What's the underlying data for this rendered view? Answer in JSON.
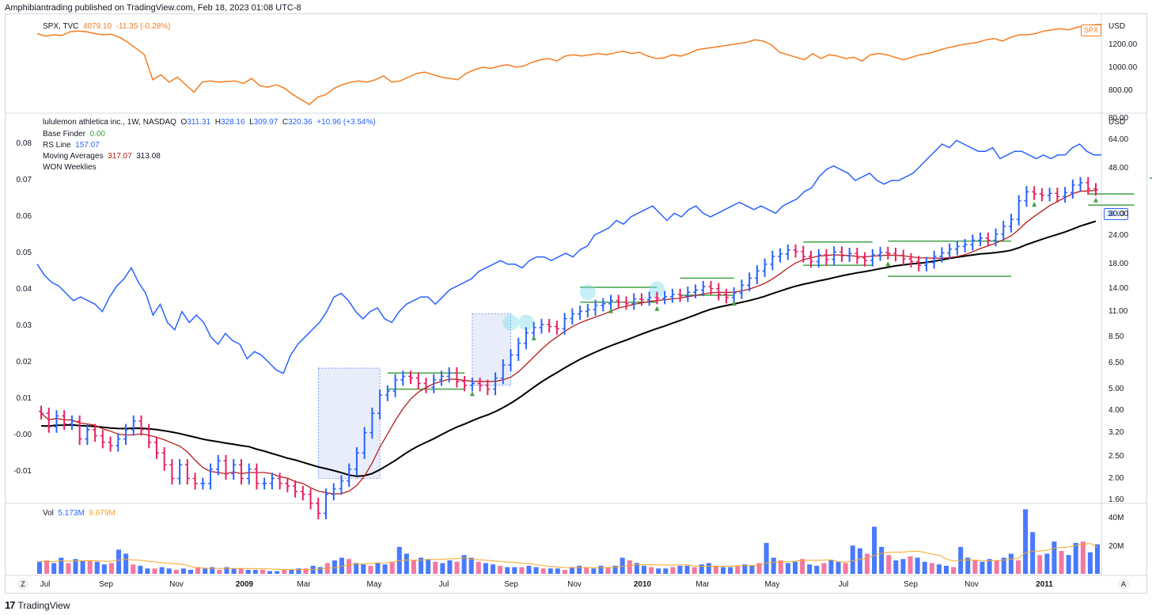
{
  "header": {
    "text": "Amphibiantrading published on TradingView.com, Feb 18, 2023 01:08 UTC-8"
  },
  "footer": {
    "logo": "17",
    "brand": "TradingView"
  },
  "spx_pane": {
    "legend": {
      "symbol": "SPX, TVC",
      "last": "4079.10",
      "change": "-11.35 (-0.28%)"
    },
    "currency": "USD",
    "price_tag": "SPX",
    "y_ticks": [
      "1200.00",
      "1000.00",
      "800.00"
    ],
    "color": "#f57c1f"
  },
  "main_pane": {
    "legend": {
      "title": "lululemon athletica inc., 1W, NASDAQ",
      "o_label": "O",
      "o": "311.31",
      "h_label": "H",
      "h": "328.16",
      "l_label": "L",
      "l": "309.97",
      "c_label": "C",
      "c": "320.36",
      "chg": "+10.96 (+3.54%)",
      "base_finder_label": "Base Finder",
      "base_finder": "0.00",
      "rs_label": "RS Line",
      "rs": "157.07",
      "ma_label": "Moving Averages",
      "ma1": "317.07",
      "ma2": "313.08",
      "won_label": "WON Weeklies"
    },
    "currency": "USD",
    "price_tag": "38.63",
    "right_ticks": [
      "80.00",
      "64.00",
      "48.00",
      "30.00",
      "24.00",
      "18.00",
      "14.00",
      "11.00",
      "8.50",
      "6.50",
      "5.00",
      "4.00",
      "3.20",
      "2.50",
      "2.00",
      "1.60"
    ],
    "left_ticks": [
      "0.08",
      "0.07",
      "0.06",
      "0.05",
      "0.04",
      "0.03",
      "0.02",
      "0.01",
      "-0.00",
      "-0.01"
    ],
    "colors": {
      "up": "#2962ff",
      "down": "#e91e63",
      "rs": "#2962ff",
      "ma_short": "#b71c1c",
      "ma_long": "#000000",
      "base": "#43a047",
      "box": "#dfe6f7"
    }
  },
  "volume_pane": {
    "legend": {
      "label": "Vol",
      "value": "5.173M",
      "ma": "8.679M"
    },
    "y_ticks": [
      "40M",
      "20M"
    ]
  },
  "x_axis": {
    "labels": [
      "Jul",
      "Sep",
      "Nov",
      "2009",
      "Mar",
      "May",
      "Jul",
      "Sep",
      "Nov",
      "2010",
      "Mar",
      "May",
      "Jul",
      "Sep",
      "Nov",
      "2011"
    ],
    "z_button": "Z",
    "a_button": "A"
  },
  "chart_data": [
    {
      "type": "line",
      "name": "SPX",
      "x_range": [
        "2008-07",
        "2011-02"
      ],
      "values": [
        1270,
        1250,
        1260,
        1255,
        1285,
        1290,
        1285,
        1270,
        1260,
        1265,
        1240,
        1200,
        1150,
        1100,
        900,
        940,
        880,
        920,
        860,
        800,
        880,
        890,
        880,
        885,
        890,
        870,
        910,
        850,
        840,
        860,
        830,
        780,
        740,
        700,
        760,
        780,
        830,
        860,
        880,
        890,
        880,
        900,
        930,
        880,
        890,
        920,
        950,
        960,
        940,
        920,
        910,
        900,
        950,
        980,
        1000,
        990,
        1010,
        1020,
        1000,
        1010,
        1040,
        1060,
        1070,
        1050,
        1090,
        1100,
        1090,
        1100,
        1110,
        1100,
        1115,
        1130,
        1110,
        1120,
        1090,
        1070,
        1075,
        1100,
        1090,
        1110,
        1140,
        1150,
        1160,
        1170,
        1180,
        1190,
        1200,
        1220,
        1210,
        1180,
        1120,
        1100,
        1080,
        1060,
        1110,
        1070,
        1100,
        1090,
        1070,
        1080,
        1050,
        1100,
        1110,
        1100,
        1080,
        1060,
        1080,
        1100,
        1110,
        1130,
        1150,
        1165,
        1180,
        1190,
        1200,
        1220,
        1230,
        1210,
        1240,
        1260,
        1260,
        1270,
        1290,
        1300,
        1310,
        1300,
        1320,
        1330,
        1340,
        1345
      ]
    },
    {
      "type": "bar",
      "name": "lululemon athletica inc.",
      "style": "ohlc",
      "y_scale": "log",
      "y_range": [
        1.6,
        80
      ],
      "weekly_close": [
        3.9,
        3.4,
        3.8,
        3.5,
        3.6,
        3.0,
        3.3,
        3.1,
        2.9,
        2.8,
        3.0,
        3.3,
        3.6,
        3.3,
        2.9,
        2.6,
        2.3,
        2.0,
        2.3,
        2.0,
        1.9,
        1.9,
        2.2,
        2.4,
        2.1,
        2.3,
        2.0,
        2.2,
        1.9,
        1.9,
        2.0,
        1.9,
        1.85,
        1.75,
        1.7,
        1.55,
        1.4,
        1.7,
        1.8,
        1.95,
        2.2,
        2.6,
        3.2,
        3.9,
        4.7,
        4.9,
        5.5,
        5.7,
        5.6,
        5.3,
        5.1,
        5.5,
        5.7,
        5.9,
        5.4,
        5.2,
        5.3,
        5.2,
        5.0,
        5.6,
        6.4,
        7.1,
        8.0,
        8.9,
        9.4,
        9.7,
        9.5,
        9.3,
        10.3,
        10.8,
        11.1,
        11.3,
        11.8,
        12.0,
        12.4,
        12.2,
        12.0,
        12.6,
        12.5,
        12.8,
        12.7,
        12.9,
        13.2,
        13.0,
        13.5,
        13.8,
        14.3,
        14.0,
        13.2,
        12.8,
        13.4,
        14.5,
        15.6,
        16.8,
        18.0,
        19.5,
        20.0,
        20.8,
        20.5,
        19.5,
        18.5,
        19.8,
        18.9,
        20.4,
        19.6,
        20.1,
        19.2,
        18.7,
        19.8,
        20.3,
        20.1,
        19.7,
        19.0,
        18.5,
        17.8,
        18.3,
        19.5,
        20.2,
        21.0,
        21.6,
        22.0,
        23.0,
        23.5,
        23.0,
        24.5,
        26.5,
        28.5,
        34.5,
        37.8,
        37.0,
        36.5,
        37.2,
        36.0,
        37.5,
        40.5,
        41.5,
        39.0,
        38.63
      ]
    },
    {
      "type": "line",
      "name": "RS Line",
      "y_range": [
        -0.01,
        0.08
      ],
      "values": [
        0.047,
        0.044,
        0.042,
        0.041,
        0.039,
        0.037,
        0.038,
        0.037,
        0.036,
        0.034,
        0.038,
        0.041,
        0.043,
        0.046,
        0.042,
        0.039,
        0.033,
        0.036,
        0.031,
        0.029,
        0.034,
        0.031,
        0.033,
        0.031,
        0.027,
        0.025,
        0.028,
        0.026,
        0.025,
        0.021,
        0.023,
        0.022,
        0.02,
        0.018,
        0.017,
        0.022,
        0.025,
        0.027,
        0.029,
        0.031,
        0.034,
        0.038,
        0.039,
        0.037,
        0.034,
        0.032,
        0.034,
        0.035,
        0.032,
        0.031,
        0.034,
        0.036,
        0.037,
        0.038,
        0.038,
        0.036,
        0.038,
        0.04,
        0.041,
        0.042,
        0.043,
        0.045,
        0.046,
        0.047,
        0.048,
        0.047,
        0.047,
        0.046,
        0.048,
        0.049,
        0.049,
        0.048,
        0.049,
        0.05,
        0.049,
        0.051,
        0.052,
        0.055,
        0.056,
        0.057,
        0.059,
        0.058,
        0.06,
        0.061,
        0.062,
        0.063,
        0.061,
        0.059,
        0.061,
        0.06,
        0.062,
        0.063,
        0.061,
        0.06,
        0.061,
        0.062,
        0.063,
        0.064,
        0.063,
        0.062,
        0.063,
        0.062,
        0.061,
        0.063,
        0.064,
        0.065,
        0.067,
        0.068,
        0.071,
        0.073,
        0.074,
        0.073,
        0.072,
        0.07,
        0.071,
        0.072,
        0.07,
        0.069,
        0.07,
        0.07,
        0.071,
        0.072,
        0.074,
        0.076,
        0.078,
        0.08,
        0.079,
        0.081,
        0.08,
        0.079,
        0.078,
        0.078,
        0.079,
        0.076,
        0.077,
        0.078,
        0.078,
        0.077,
        0.076,
        0.077,
        0.076,
        0.077,
        0.077,
        0.079,
        0.08,
        0.078,
        0.077,
        0.077
      ]
    },
    {
      "type": "bar",
      "name": "Vol",
      "values_millions": [
        9,
        10,
        8,
        12,
        8,
        11,
        10,
        10,
        9,
        7,
        8,
        18,
        15,
        7,
        6,
        4,
        4,
        5,
        4,
        3,
        4,
        3,
        5,
        4,
        5,
        3,
        5,
        4,
        4,
        3,
        3,
        3,
        2,
        2,
        3,
        3,
        4,
        4,
        6,
        5,
        8,
        10,
        12,
        11,
        8,
        7,
        6,
        8,
        7,
        9,
        20,
        15,
        10,
        12,
        11,
        9,
        8,
        10,
        9,
        14,
        12,
        9,
        8,
        7,
        6,
        5,
        5,
        5,
        6,
        5,
        4,
        4,
        4,
        3,
        5,
        6,
        5,
        4,
        6,
        5,
        6,
        12,
        10,
        8,
        6,
        5,
        4,
        4,
        5,
        6,
        6,
        5,
        7,
        8,
        6,
        5,
        5,
        6,
        7,
        6,
        8,
        23,
        12,
        10,
        8,
        9,
        11,
        7,
        6,
        8,
        10,
        9,
        8,
        21,
        19,
        15,
        35,
        20,
        14,
        10,
        11,
        13,
        12,
        9,
        8,
        7,
        6,
        5,
        20,
        12,
        10,
        9,
        11,
        10,
        12,
        15,
        10,
        48,
        31,
        14,
        15,
        24,
        17,
        14,
        23,
        24,
        16,
        22
      ]
    }
  ]
}
